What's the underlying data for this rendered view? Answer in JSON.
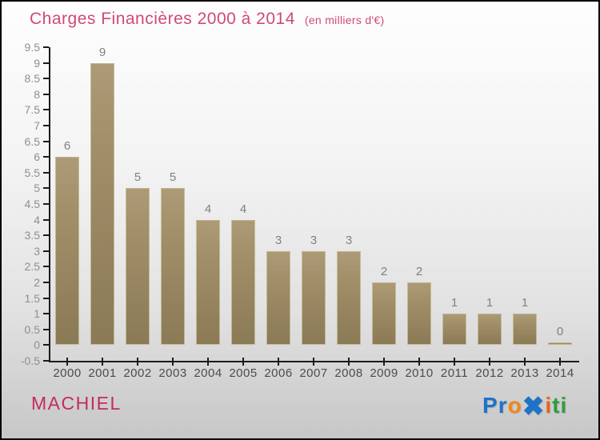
{
  "header": {
    "title": "Charges Financières 2000 à 2014",
    "subtitle": "(en milliers d'€)",
    "title_color": "#d04a73"
  },
  "chart_data": {
    "type": "bar",
    "title": "Charges Financières 2000 à 2014",
    "unit_note": "(en milliers d'€)",
    "categories": [
      "2000",
      "2001",
      "2002",
      "2003",
      "2004",
      "2005",
      "2006",
      "2007",
      "2008",
      "2009",
      "2010",
      "2011",
      "2012",
      "2013",
      "2014"
    ],
    "values": [
      6,
      9,
      5,
      5,
      4,
      4,
      3,
      3,
      3,
      2,
      2,
      1,
      1,
      1,
      0
    ],
    "ylim": [
      -0.5,
      9.5
    ],
    "ytick_step": 0.5,
    "grid": false,
    "legend": "none",
    "bar_color_top": "#ac9b76",
    "bar_color_bottom": "#8a7a55",
    "value_label_color": "#808080",
    "axis_color": "#1b1b1b",
    "ytick_label_color": "#8f8f8f",
    "xlabel_color": "#4c4c4c"
  },
  "footer": {
    "company": "MACHIEL",
    "company_color": "#c32c5c",
    "logo": {
      "name": "Proxiti",
      "letters": [
        {
          "ch": "P",
          "color": "#1e72c8",
          "big": false
        },
        {
          "ch": "r",
          "color": "#1e72c8",
          "big": false
        },
        {
          "ch": "o",
          "color": "#f0861a",
          "big": false
        },
        {
          "ch": "✖",
          "color": "#1e72c8",
          "big": true
        },
        {
          "ch": "i",
          "color": "#e8641a",
          "big": false
        },
        {
          "ch": "t",
          "color": "#2f9e3c",
          "big": false
        },
        {
          "ch": "i",
          "color": "#2f9e3c",
          "big": false
        }
      ]
    }
  }
}
